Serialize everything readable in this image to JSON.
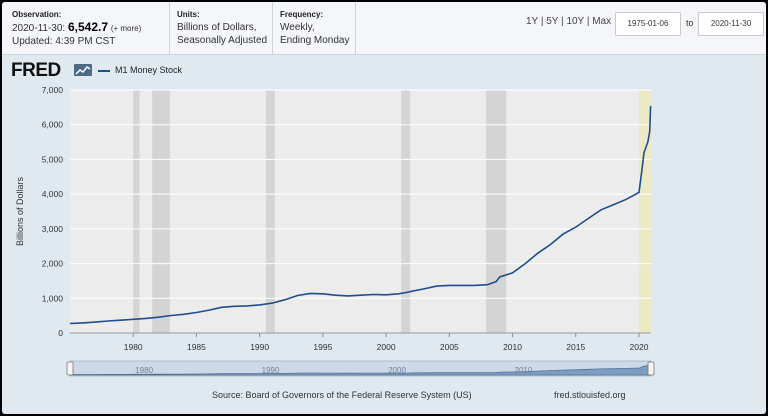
{
  "header": {
    "observation_label": "Observation:",
    "observation_date": "2020-11-30:",
    "observation_value": "6,542.7",
    "observation_more": "(+ more)",
    "updated": "Updated: 4:39 PM CST",
    "units_label": "Units:",
    "units_line1": "Billions of Dollars,",
    "units_line2": "Seasonally Adjusted",
    "frequency_label": "Frequency:",
    "frequency_line1": "Weekly,",
    "frequency_line2": "Ending Monday",
    "range_links": [
      "1Y",
      "5Y",
      "10Y",
      "Max"
    ],
    "start_date": "1975-01-06",
    "to_label": "to",
    "end_date": "2020-11-30"
  },
  "logo_text": "FRED",
  "legend_label": "M1 Money Stock",
  "source_text": "Source: Board of Governors of the Federal Reserve System (US)",
  "site_text": "fred.stlouisfed.org",
  "colors": {
    "series": "#1f4e8c",
    "recession": "#d4d4d4",
    "highlight": "#ece9c6",
    "plot_bg": "#ececec"
  },
  "chart_data": {
    "type": "line",
    "title": "M1 Money Stock",
    "xlabel": "",
    "ylabel": "Billions of Dollars",
    "xlim": [
      1975.0,
      2020.95
    ],
    "ylim": [
      0,
      7000
    ],
    "x_ticks": [
      1980,
      1985,
      1990,
      1995,
      2000,
      2005,
      2010,
      2015,
      2020
    ],
    "y_ticks": [
      0,
      1000,
      2000,
      3000,
      4000,
      5000,
      6000,
      7000
    ],
    "y_tick_labels": [
      "0",
      "1,000",
      "2,000",
      "3,000",
      "4,000",
      "5,000",
      "6,000",
      "7,000"
    ],
    "navigator_labels": [
      "1980",
      "1990",
      "2000",
      "2010"
    ],
    "recessions": [
      [
        1980.0,
        1980.5
      ],
      [
        1981.5,
        1982.9
      ],
      [
        1990.5,
        1991.2
      ],
      [
        2001.2,
        2001.9
      ],
      [
        2007.9,
        2009.5
      ]
    ],
    "highlight": [
      2020.0,
      2020.95
    ],
    "series": [
      {
        "name": "M1 Money Stock",
        "points": [
          [
            1975.0,
            275
          ],
          [
            1976.0,
            290
          ],
          [
            1977.0,
            315
          ],
          [
            1978.0,
            345
          ],
          [
            1979.0,
            370
          ],
          [
            1980.0,
            395
          ],
          [
            1981.0,
            420
          ],
          [
            1982.0,
            455
          ],
          [
            1983.0,
            505
          ],
          [
            1984.0,
            540
          ],
          [
            1985.0,
            590
          ],
          [
            1986.0,
            660
          ],
          [
            1987.0,
            740
          ],
          [
            1988.0,
            770
          ],
          [
            1989.0,
            780
          ],
          [
            1990.0,
            810
          ],
          [
            1991.0,
            860
          ],
          [
            1992.0,
            960
          ],
          [
            1993.0,
            1080
          ],
          [
            1994.0,
            1140
          ],
          [
            1995.0,
            1130
          ],
          [
            1996.0,
            1090
          ],
          [
            1997.0,
            1070
          ],
          [
            1998.0,
            1090
          ],
          [
            1999.0,
            1110
          ],
          [
            2000.0,
            1100
          ],
          [
            2001.0,
            1130
          ],
          [
            2001.8,
            1180
          ],
          [
            2002.0,
            1200
          ],
          [
            2003.0,
            1270
          ],
          [
            2004.0,
            1350
          ],
          [
            2005.0,
            1370
          ],
          [
            2006.0,
            1370
          ],
          [
            2007.0,
            1370
          ],
          [
            2008.0,
            1390
          ],
          [
            2008.7,
            1480
          ],
          [
            2009.0,
            1620
          ],
          [
            2010.0,
            1730
          ],
          [
            2011.0,
            2000
          ],
          [
            2012.0,
            2300
          ],
          [
            2013.0,
            2550
          ],
          [
            2014.0,
            2850
          ],
          [
            2015.0,
            3050
          ],
          [
            2016.0,
            3300
          ],
          [
            2017.0,
            3550
          ],
          [
            2018.0,
            3700
          ],
          [
            2019.0,
            3850
          ],
          [
            2020.0,
            4050
          ],
          [
            2020.2,
            4600
          ],
          [
            2020.4,
            5200
          ],
          [
            2020.7,
            5500
          ],
          [
            2020.85,
            5800
          ],
          [
            2020.92,
            6542.7
          ]
        ]
      }
    ]
  }
}
